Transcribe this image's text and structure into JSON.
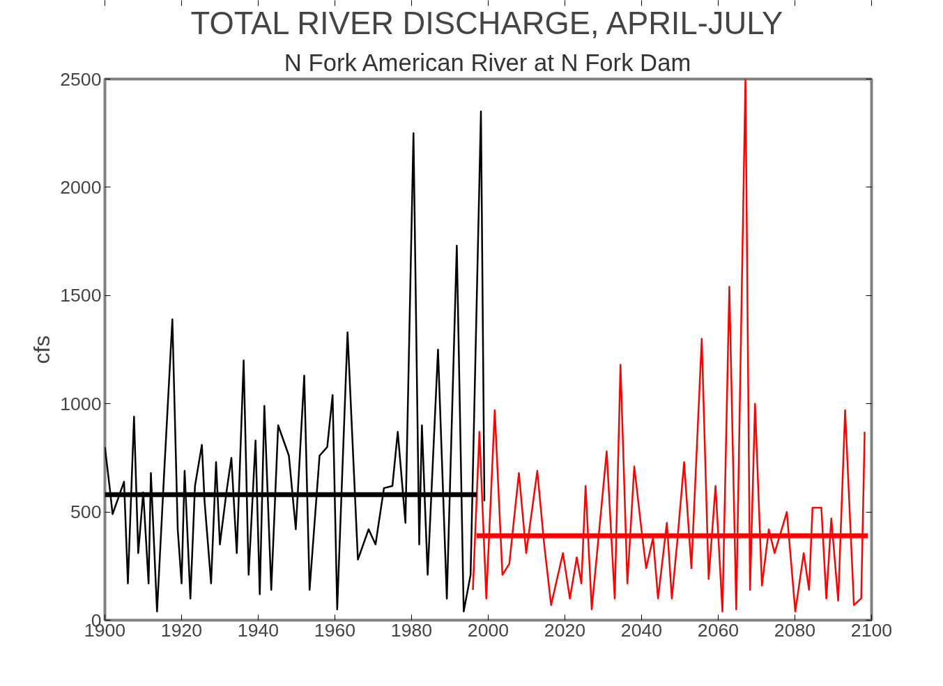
{
  "chart_data": {
    "type": "line",
    "title": "TOTAL RIVER DISCHARGE, APRIL-JULY",
    "subtitle": "N Fork American River at N Fork Dam",
    "ylabel": "cfs",
    "xlim": [
      1900,
      2100
    ],
    "xticks": [
      1900,
      1920,
      1940,
      1960,
      1980,
      2000,
      2020,
      2040,
      2060,
      2080,
      2100
    ],
    "ylim": [
      0,
      2500
    ],
    "yticks": [
      0,
      500,
      1000,
      1500,
      2000,
      2500
    ],
    "grid": false,
    "marker": "none",
    "line_style": "solid",
    "series": [
      {
        "color": "#000000",
        "x": [
          1900,
          1901.4,
          1902,
          1904,
          1905,
          1906,
          1907.6,
          1908.7,
          1910,
          1911.4,
          1912,
          1913.6,
          1915.4,
          1917.6,
          1919,
          1920,
          1920.8,
          1922.3,
          1923.5,
          1925.3,
          1926,
          1927.7,
          1929,
          1930,
          1931.7,
          1933,
          1934.4,
          1936.2,
          1937.5,
          1939.3,
          1940.4,
          1941.6,
          1943.4,
          1945.2,
          1948,
          1949.8,
          1952,
          1953.4,
          1956,
          1958,
          1959.4,
          1960.6,
          1963.3,
          1966,
          1968.8,
          1970.6,
          1972.8,
          1975,
          1976.4,
          1978.4,
          1980.5,
          1982,
          1982.7,
          1984.2,
          1986.9,
          1989.2,
          1991.8,
          1993.6,
          1995.4,
          1998.1,
          1999
        ],
        "values": [
          800,
          590,
          490,
          590,
          640,
          170,
          940,
          310,
          590,
          170,
          680,
          40,
          660,
          1390,
          420,
          170,
          690,
          100,
          620,
          810,
          550,
          170,
          730,
          350,
          590,
          750,
          310,
          1200,
          210,
          830,
          120,
          990,
          140,
          900,
          760,
          420,
          1130,
          140,
          760,
          800,
          1040,
          50,
          1330,
          280,
          420,
          350,
          610,
          620,
          870,
          450,
          2250,
          350,
          900,
          210,
          1250,
          100,
          1730,
          40,
          210,
          2350,
          550
        ]
      },
      {
        "color": "#ff0000",
        "x": [
          1996,
          1997.7,
          1999.5,
          2001.7,
          2003.7,
          2005.5,
          2008,
          2009.9,
          2012.8,
          2014.6,
          2016.4,
          2019.5,
          2021.3,
          2023.1,
          2024.3,
          2025.4,
          2027,
          2030.9,
          2033,
          2034.5,
          2036.3,
          2038.1,
          2039.9,
          2041.2,
          2043,
          2044.3,
          2046.6,
          2047.9,
          2049.3,
          2051.1,
          2053,
          2055.7,
          2057.5,
          2059.3,
          2061.1,
          2062.9,
          2064.7,
          2067.1,
          2068.3,
          2069.6,
          2071.4,
          2073.2,
          2074.7,
          2077.9,
          2080.1,
          2082.3,
          2083.7,
          2084.6,
          2086.9,
          2088.2,
          2089.5,
          2091.3,
          2093.1,
          2095.4,
          2097.3,
          2098.2
        ],
        "values": [
          140,
          870,
          100,
          970,
          210,
          260,
          680,
          310,
          690,
          350,
          70,
          310,
          100,
          290,
          170,
          620,
          50,
          780,
          100,
          1180,
          170,
          710,
          430,
          240,
          380,
          100,
          450,
          100,
          360,
          730,
          240,
          1300,
          190,
          620,
          40,
          1540,
          50,
          2500,
          140,
          1000,
          160,
          420,
          310,
          500,
          40,
          310,
          140,
          520,
          520,
          100,
          470,
          90,
          970,
          70,
          100,
          870
        ]
      },
      {
        "color": "#000000",
        "x": [
          1900,
          1997
        ],
        "values": [
          580,
          580
        ]
      },
      {
        "color": "#ff0000",
        "x": [
          1997,
          2099
        ],
        "values": [
          390,
          390
        ]
      }
    ]
  }
}
